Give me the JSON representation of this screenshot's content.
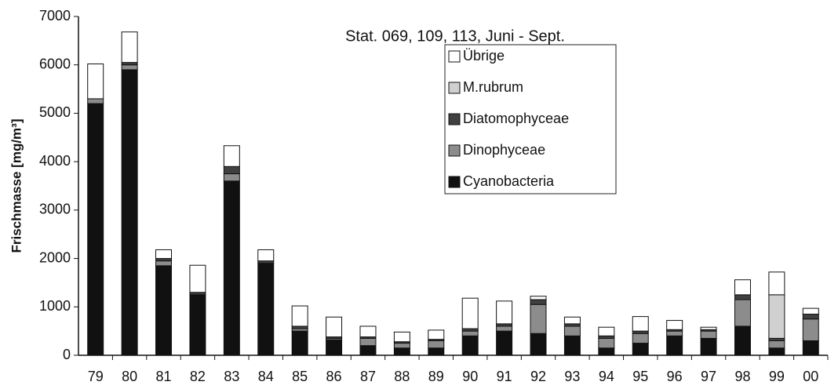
{
  "chart_data": {
    "type": "stacked_bar",
    "title": "Stat. 069, 109, 113, Juni - Sept.",
    "y_label": "Frischmasse [mg/m³]",
    "categories": [
      "79",
      "80",
      "81",
      "82",
      "83",
      "84",
      "85",
      "86",
      "87",
      "88",
      "89",
      "90",
      "91",
      "92",
      "93",
      "94",
      "95",
      "96",
      "97",
      "98",
      "99",
      "00"
    ],
    "series": [
      {
        "name": "Cyanobacteria",
        "color": "#111111",
        "values": [
          5200,
          5900,
          1850,
          1250,
          3600,
          1900,
          500,
          320,
          200,
          150,
          150,
          400,
          500,
          450,
          400,
          150,
          250,
          400,
          350,
          600,
          150,
          300
        ]
      },
      {
        "name": "Dinophyceae",
        "color": "#8c8c8c",
        "values": [
          100,
          100,
          100,
          0,
          150,
          0,
          50,
          30,
          150,
          100,
          150,
          100,
          100,
          600,
          200,
          200,
          200,
          100,
          150,
          550,
          150,
          450
        ]
      },
      {
        "name": "Diatomophyceae",
        "color": "#404040",
        "values": [
          0,
          50,
          50,
          50,
          150,
          50,
          50,
          30,
          30,
          30,
          30,
          50,
          50,
          100,
          50,
          50,
          50,
          30,
          30,
          100,
          50,
          100
        ]
      },
      {
        "name": "M.rubrum",
        "color": "#d0d0d0",
        "values": [
          0,
          0,
          0,
          0,
          0,
          0,
          0,
          0,
          0,
          0,
          0,
          0,
          0,
          0,
          0,
          0,
          0,
          0,
          0,
          0,
          900,
          0
        ]
      },
      {
        "name": "Übrige",
        "color": "#ffffff",
        "values": [
          720,
          630,
          180,
          560,
          430,
          230,
          420,
          410,
          220,
          200,
          190,
          630,
          470,
          70,
          140,
          180,
          300,
          190,
          50,
          310,
          470,
          120
        ]
      }
    ],
    "ylim": [
      0,
      7000
    ],
    "yticks": [
      0,
      1000,
      2000,
      3000,
      4000,
      5000,
      6000,
      7000
    ],
    "grid": false,
    "legend": "upper center"
  }
}
